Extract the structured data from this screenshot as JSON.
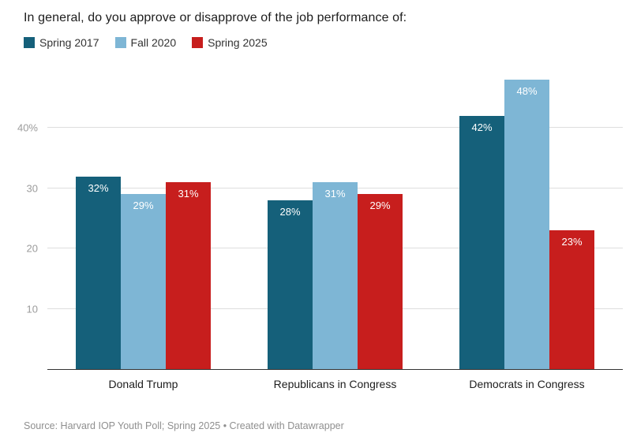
{
  "header": {
    "title": "In general, do you approve or disapprove of the job performance of:"
  },
  "footer": {
    "source": "Source: Harvard IOP Youth Poll; Spring 2025 • Created with Datawrapper"
  },
  "chart_data": {
    "type": "bar",
    "title": "In general, do you approve or disapprove of the job performance of:",
    "categories": [
      "Donald Trump",
      "Republicans in Congress",
      "Democrats in Congress"
    ],
    "series": [
      {
        "name": "Spring 2017",
        "color": "#15607a",
        "values": [
          32,
          28,
          42
        ]
      },
      {
        "name": "Fall 2020",
        "color": "#7eb6d5",
        "values": [
          29,
          31,
          48
        ]
      },
      {
        "name": "Spring 2025",
        "color": "#c71e1d",
        "values": [
          31,
          29,
          23
        ]
      }
    ],
    "xlabel": "",
    "ylabel": "",
    "ylim": [
      0,
      50
    ],
    "yticks": [
      {
        "value": 10,
        "label": "10"
      },
      {
        "value": 20,
        "label": "20"
      },
      {
        "value": 30,
        "label": "30"
      },
      {
        "value": 40,
        "label": "40%"
      }
    ],
    "grid": true,
    "legend_position": "top",
    "value_suffix": "%",
    "bar_label_color": "#ffffff"
  }
}
